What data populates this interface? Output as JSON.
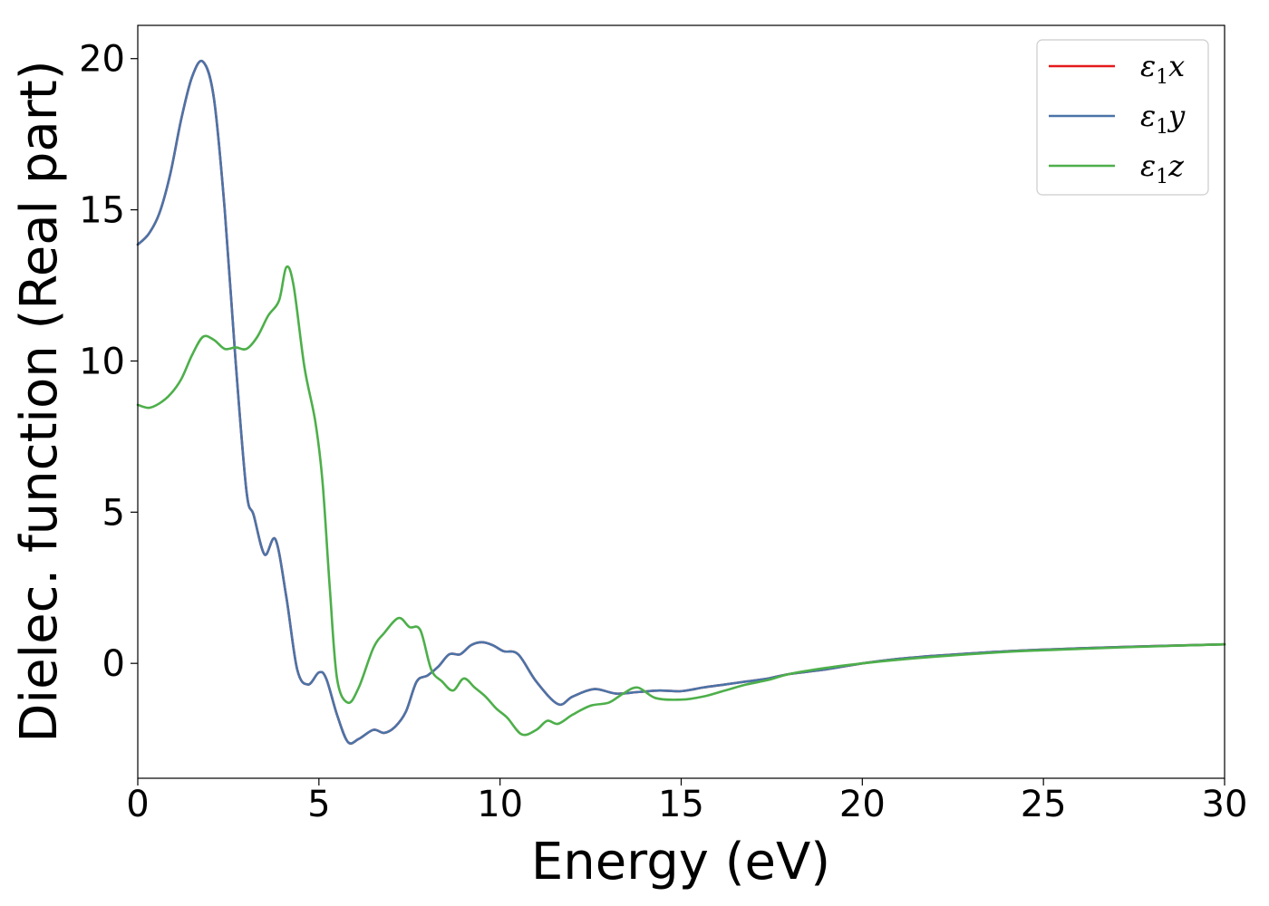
{
  "chart_data": {
    "type": "line",
    "title": "",
    "xlabel": "Energy (eV)",
    "ylabel": "Dielec. function (Real part)",
    "xlim": [
      0,
      30
    ],
    "ylim": [
      -3.8,
      21.1
    ],
    "xticks": [
      0,
      5,
      10,
      15,
      20,
      25,
      30
    ],
    "xtick_labels": [
      "0",
      "5",
      "10",
      "15",
      "20",
      "25",
      "30"
    ],
    "yticks": [
      0,
      5,
      10,
      15,
      20
    ],
    "ytick_labels": [
      "0",
      "5",
      "10",
      "15",
      "20"
    ],
    "grid": false,
    "legend_position": "top-right",
    "series": [
      {
        "name": "ε1x",
        "legend_symbol": "ε",
        "legend_sub": "1",
        "legend_var": "x",
        "color": "#e41a1c",
        "x": [
          0,
          0.3,
          0.6,
          0.9,
          1.2,
          1.5,
          1.8,
          2.1,
          2.4,
          2.7,
          3.0,
          3.2,
          3.5,
          3.8,
          4.1,
          4.4,
          4.7,
          5.0,
          5.2,
          5.5,
          5.8,
          6.1,
          6.5,
          6.8,
          7.1,
          7.4,
          7.7,
          8.0,
          8.3,
          8.6,
          8.9,
          9.2,
          9.5,
          9.8,
          10.1,
          10.5,
          11.0,
          11.6,
          12.0,
          12.6,
          13.2,
          13.8,
          14.4,
          15.0,
          15.6,
          16.2,
          16.8,
          17.4,
          18.0,
          19.0,
          20.0,
          21.0,
          22.0,
          24.0,
          26.0,
          28.0,
          30.0
        ],
        "y": [
          13.85,
          14.2,
          14.9,
          16.2,
          18.0,
          19.4,
          19.9,
          18.7,
          15.0,
          10.0,
          5.7,
          4.9,
          3.6,
          4.1,
          2.2,
          -0.2,
          -0.7,
          -0.3,
          -0.5,
          -1.7,
          -2.6,
          -2.5,
          -2.2,
          -2.3,
          -2.1,
          -1.6,
          -0.6,
          -0.4,
          -0.1,
          0.3,
          0.3,
          0.6,
          0.7,
          0.6,
          0.4,
          0.3,
          -0.6,
          -1.35,
          -1.1,
          -0.85,
          -1.0,
          -0.95,
          -0.9,
          -0.92,
          -0.8,
          -0.7,
          -0.6,
          -0.5,
          -0.35,
          -0.2,
          0.0,
          0.15,
          0.25,
          0.4,
          0.5,
          0.57,
          0.63
        ]
      },
      {
        "name": "ε1y",
        "legend_symbol": "ε",
        "legend_sub": "1",
        "legend_var": "y",
        "color": "#4a74a8",
        "x": [
          0,
          0.3,
          0.6,
          0.9,
          1.2,
          1.5,
          1.8,
          2.1,
          2.4,
          2.7,
          3.0,
          3.2,
          3.5,
          3.8,
          4.1,
          4.4,
          4.7,
          5.0,
          5.2,
          5.5,
          5.8,
          6.1,
          6.5,
          6.8,
          7.1,
          7.4,
          7.7,
          8.0,
          8.3,
          8.6,
          8.9,
          9.2,
          9.5,
          9.8,
          10.1,
          10.5,
          11.0,
          11.6,
          12.0,
          12.6,
          13.2,
          13.8,
          14.4,
          15.0,
          15.6,
          16.2,
          16.8,
          17.4,
          18.0,
          19.0,
          20.0,
          21.0,
          22.0,
          24.0,
          26.0,
          28.0,
          30.0
        ],
        "y": [
          13.85,
          14.2,
          14.9,
          16.2,
          18.0,
          19.4,
          19.9,
          18.7,
          15.0,
          10.0,
          5.7,
          4.9,
          3.6,
          4.1,
          2.2,
          -0.2,
          -0.7,
          -0.3,
          -0.5,
          -1.7,
          -2.6,
          -2.5,
          -2.2,
          -2.3,
          -2.1,
          -1.6,
          -0.6,
          -0.4,
          -0.1,
          0.3,
          0.3,
          0.6,
          0.7,
          0.6,
          0.4,
          0.3,
          -0.6,
          -1.35,
          -1.1,
          -0.85,
          -1.0,
          -0.95,
          -0.9,
          -0.92,
          -0.8,
          -0.7,
          -0.6,
          -0.5,
          -0.35,
          -0.2,
          0.0,
          0.15,
          0.25,
          0.4,
          0.5,
          0.57,
          0.63
        ]
      },
      {
        "name": "ε1z",
        "legend_symbol": "ε",
        "legend_sub": "1",
        "legend_var": "z",
        "color": "#4daf4a",
        "x": [
          0,
          0.3,
          0.6,
          0.9,
          1.2,
          1.5,
          1.8,
          2.1,
          2.4,
          2.7,
          3.0,
          3.3,
          3.6,
          3.9,
          4.1,
          4.3,
          4.6,
          4.9,
          5.1,
          5.3,
          5.5,
          5.8,
          6.1,
          6.5,
          6.8,
          7.2,
          7.5,
          7.8,
          8.1,
          8.4,
          8.7,
          9.0,
          9.3,
          9.6,
          9.9,
          10.2,
          10.6,
          11.0,
          11.3,
          11.6,
          12.0,
          12.5,
          13.0,
          13.4,
          13.8,
          14.3,
          15.0,
          15.6,
          16.2,
          16.8,
          17.4,
          18.0,
          19.0,
          20.0,
          21.0,
          22.0,
          24.0,
          26.0,
          28.0,
          30.0
        ],
        "y": [
          8.55,
          8.45,
          8.6,
          8.9,
          9.4,
          10.2,
          10.8,
          10.7,
          10.4,
          10.45,
          10.4,
          10.8,
          11.5,
          12.0,
          13.1,
          12.5,
          9.8,
          8.0,
          6.0,
          2.5,
          -0.5,
          -1.3,
          -0.8,
          0.5,
          1.0,
          1.5,
          1.2,
          1.1,
          -0.2,
          -0.6,
          -0.9,
          -0.5,
          -0.8,
          -1.1,
          -1.5,
          -1.8,
          -2.35,
          -2.2,
          -1.9,
          -2.0,
          -1.7,
          -1.4,
          -1.3,
          -1.0,
          -0.8,
          -1.15,
          -1.2,
          -1.1,
          -0.9,
          -0.7,
          -0.55,
          -0.35,
          -0.15,
          0.0,
          0.12,
          0.22,
          0.38,
          0.48,
          0.56,
          0.63
        ]
      }
    ]
  }
}
